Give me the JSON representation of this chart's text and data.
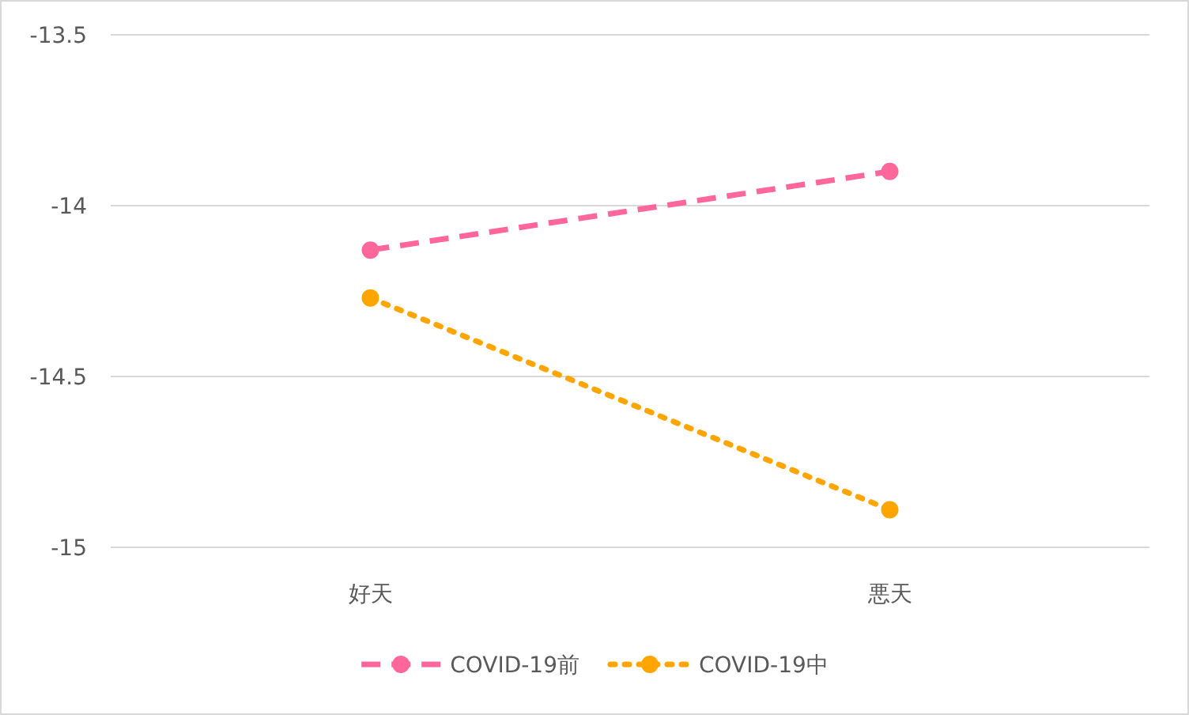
{
  "chart_data": {
    "type": "line",
    "categories": [
      "好天",
      "悪天"
    ],
    "series": [
      {
        "name": "COVID-19前",
        "color": "#ff6699",
        "values": [
          -14.13,
          -13.9
        ],
        "line_style": "dashed"
      },
      {
        "name": "COVID-19中",
        "color": "#ffa500",
        "values": [
          -14.27,
          -14.89
        ],
        "line_style": "dotted"
      }
    ],
    "ylim": [
      -15,
      -13.5
    ],
    "yticks": [
      -15,
      -14.5,
      -14,
      -13.5
    ],
    "grid": "y",
    "legend": "bottom",
    "marker": "circle"
  }
}
